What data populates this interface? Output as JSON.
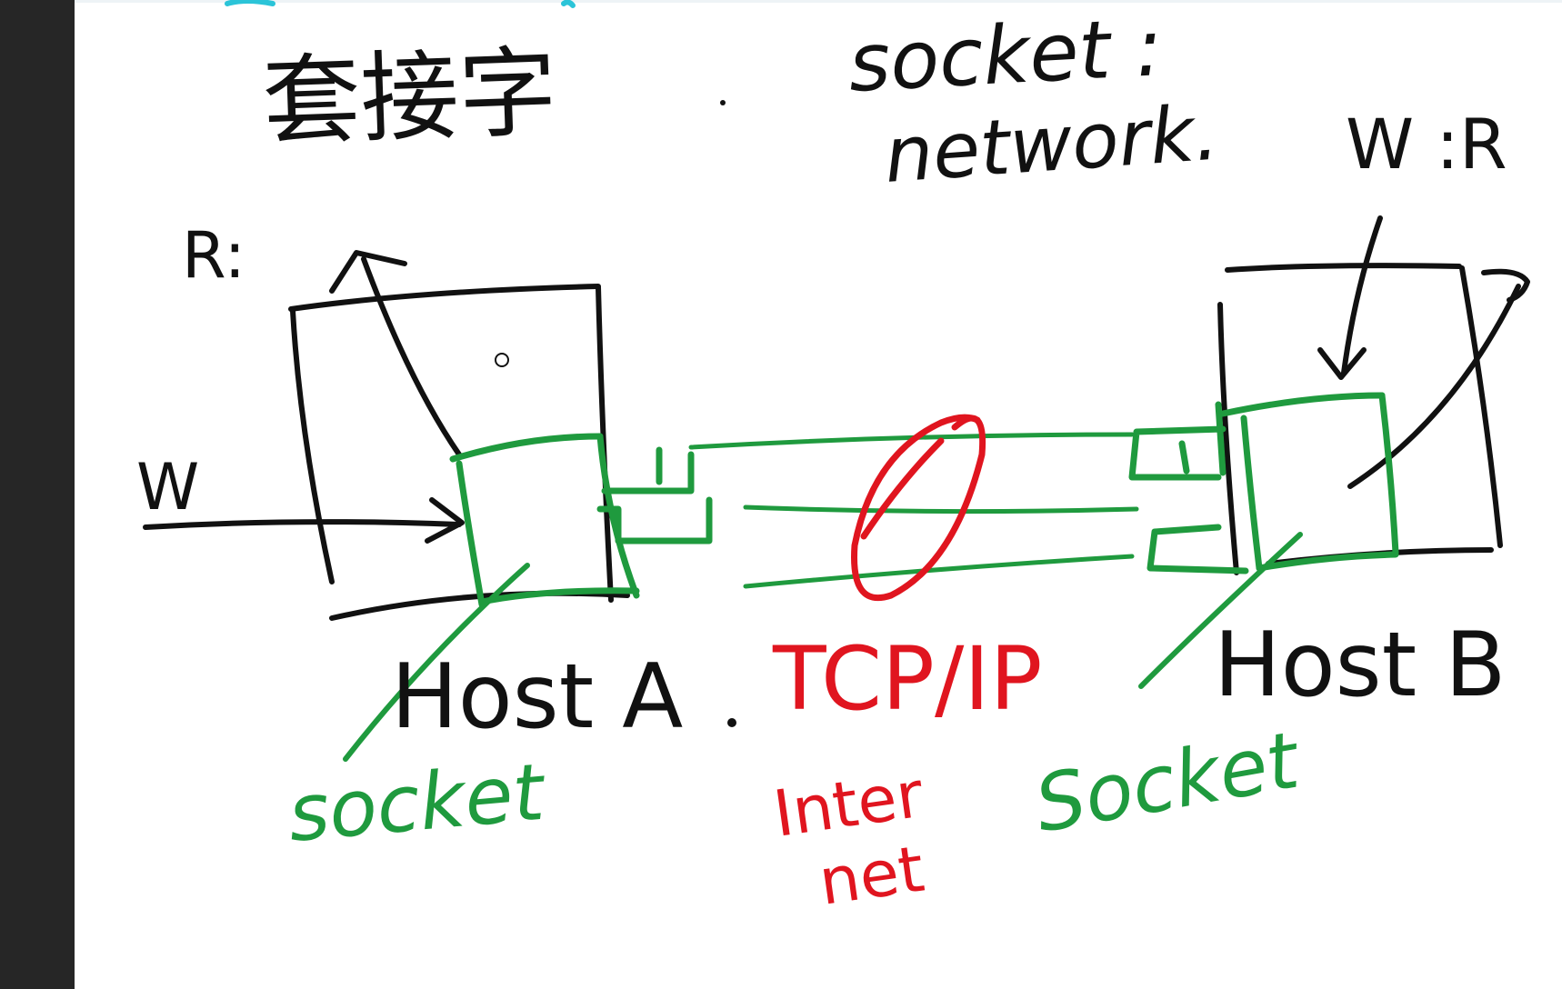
{
  "window": {
    "sidebar_color": "#262626",
    "canvas_color": "#ffffff"
  },
  "colors": {
    "ink": "#111111",
    "green": "#1f9a3e",
    "red": "#e0151f",
    "teal": "#2bc4d8"
  },
  "title": {
    "chinese": "套接字",
    "english": "socket :"
  },
  "subtitle": "network.",
  "host_a": {
    "label": "Host A",
    "read_label": "R:",
    "write_label": "W",
    "socket_label": "socket"
  },
  "host_b": {
    "label": "Host B",
    "rw_label": "W :R",
    "socket_label": "Socket"
  },
  "protocol": {
    "label": "TCP/IP",
    "internet_line1": "Inter",
    "internet_line2": "net"
  },
  "separator": "."
}
